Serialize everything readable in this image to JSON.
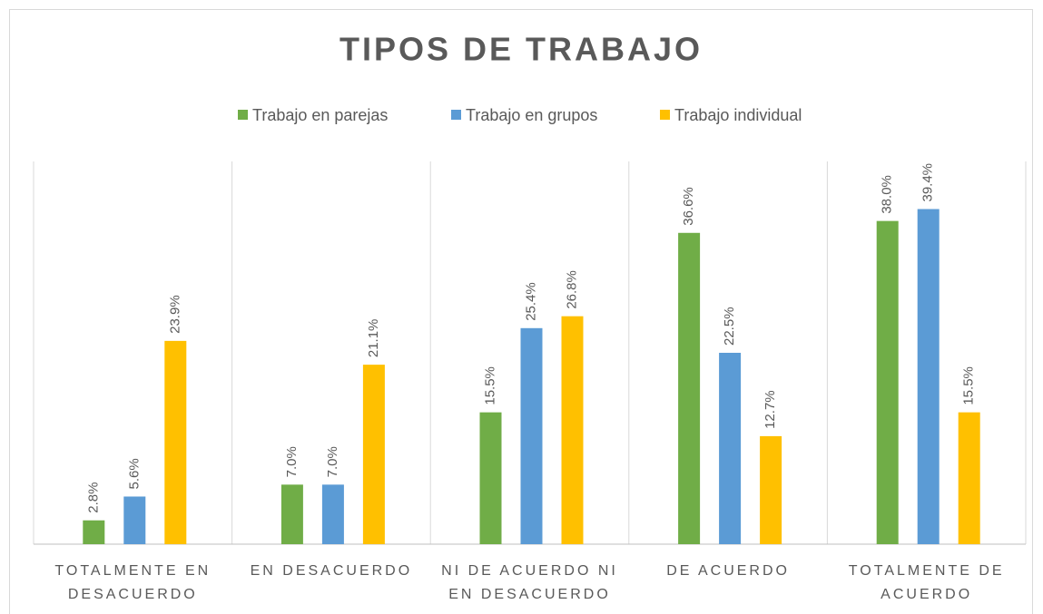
{
  "chart_data": {
    "type": "bar",
    "title": "TIPOS DE TRABAJO",
    "categories": [
      "TOTALMENTE EN DESACUERDO",
      "EN DESACUERDO",
      "NI DE ACUERDO NI EN DESACUERDO",
      "DE ACUERDO",
      "TOTALMENTE DE ACUERDO"
    ],
    "series": [
      {
        "name": "Trabajo en parejas",
        "color": "#70ad47",
        "values": [
          2.8,
          7.0,
          15.5,
          36.6,
          38.0
        ],
        "value_labels": [
          "2.8%",
          "7.0%",
          "15.5%",
          "36.6%",
          "38.0%"
        ]
      },
      {
        "name": "Trabajo en grupos",
        "color": "#5b9bd5",
        "values": [
          5.6,
          7.0,
          25.4,
          22.5,
          39.4
        ],
        "value_labels": [
          "5.6%",
          "7.0%",
          "25.4%",
          "22.5%",
          "39.4%"
        ]
      },
      {
        "name": "Trabajo individual",
        "color": "#ffc000",
        "values": [
          23.9,
          21.1,
          26.8,
          12.7,
          15.5
        ],
        "value_labels": [
          "23.9%",
          "21.1%",
          "26.8%",
          "12.7%",
          "15.5%"
        ]
      }
    ],
    "ylim": [
      0,
      45
    ],
    "legend": "top"
  }
}
